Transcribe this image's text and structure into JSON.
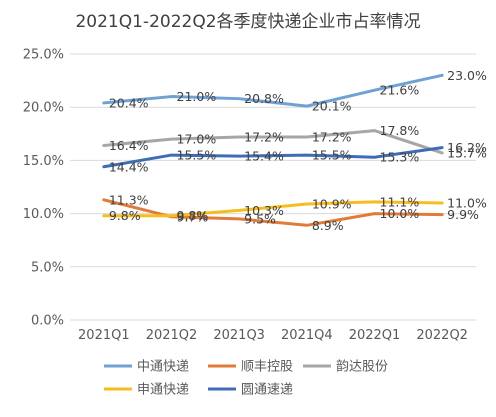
{
  "chart_data": {
    "type": "line",
    "title": "2021Q1-2022Q2各季度快递企业市占率情况",
    "categories": [
      "2021Q1",
      "2021Q2",
      "2021Q3",
      "2021Q4",
      "2022Q1",
      "2022Q2"
    ],
    "ylim": [
      0,
      25
    ],
    "yticks": [
      "0.0%",
      "5.0%",
      "10.0%",
      "15.0%",
      "20.0%",
      "25.0%"
    ],
    "grid": true,
    "legend_position": "bottom",
    "series": [
      {
        "name": "中通快递",
        "color": "#6FA1D4",
        "values": [
          20.4,
          21.0,
          20.8,
          20.1,
          21.6,
          23.0
        ],
        "labels": [
          "20.4%",
          "21.0%",
          "20.8%",
          "20.1%",
          "21.6%",
          "23.0%"
        ]
      },
      {
        "name": "顺丰控股",
        "color": "#E07B39",
        "values": [
          11.3,
          9.7,
          9.5,
          8.9,
          10.0,
          9.9
        ],
        "labels": [
          "11.3%",
          "9.7%",
          "9.5%",
          "8.9%",
          "10.0%",
          "9.9%"
        ]
      },
      {
        "name": "韵达股份",
        "color": "#A6A6A6",
        "values": [
          16.4,
          17.0,
          17.2,
          17.2,
          17.8,
          15.7
        ],
        "labels": [
          "16.4%",
          "17.0%",
          "17.2%",
          "17.2%",
          "17.8%",
          "15.7%"
        ]
      },
      {
        "name": "申通快递",
        "color": "#F5BE1E",
        "values": [
          9.8,
          9.8,
          10.3,
          10.9,
          11.1,
          11.0
        ],
        "labels": [
          "9.8%",
          "9.8%",
          "10.3%",
          "10.9%",
          "11.1%",
          "11.0%"
        ]
      },
      {
        "name": "圆通速递",
        "color": "#3E6DB5",
        "values": [
          14.4,
          15.5,
          15.4,
          15.5,
          15.3,
          16.2
        ],
        "labels": [
          "14.4%",
          "15.5%",
          "15.4%",
          "15.5%",
          "15.3%",
          "16.2%"
        ]
      }
    ]
  }
}
